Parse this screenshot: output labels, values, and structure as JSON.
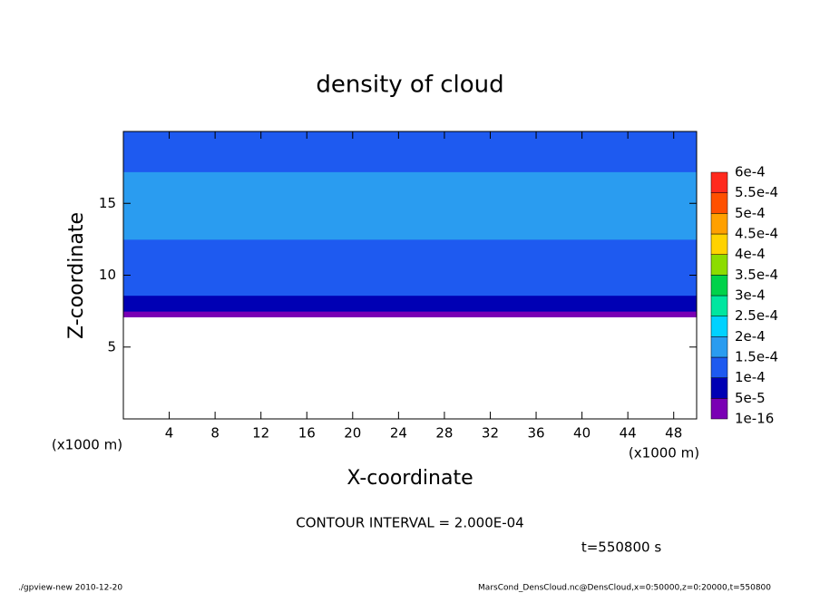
{
  "chart_data": {
    "type": "contour",
    "title": "density of cloud",
    "xlabel": "X-coordinate",
    "ylabel": "Z-coordinate",
    "x_unit_left": "(x1000 m)",
    "x_unit_right": "(x1000 m)",
    "xlim": [
      0,
      50
    ],
    "xticks": [
      4,
      8,
      12,
      16,
      20,
      24,
      28,
      32,
      36,
      40,
      44,
      48
    ],
    "ylim": [
      0,
      20
    ],
    "yticks": [
      5,
      10,
      15
    ],
    "levels": [
      {
        "value": 1e-16,
        "label": "1e-16"
      },
      {
        "value": 5e-05,
        "label": "5e-5"
      },
      {
        "value": 0.0001,
        "label": "1e-4"
      },
      {
        "value": 0.00015,
        "label": "1.5e-4"
      },
      {
        "value": 0.0002,
        "label": "2e-4"
      },
      {
        "value": 0.00025,
        "label": "2.5e-4"
      },
      {
        "value": 0.0003,
        "label": "3e-4"
      },
      {
        "value": 0.00035,
        "label": "3.5e-4"
      },
      {
        "value": 0.0004,
        "label": "4e-4"
      },
      {
        "value": 0.00045,
        "label": "4.5e-4"
      },
      {
        "value": 0.0005,
        "label": "5e-4"
      },
      {
        "value": 0.00055,
        "label": "5.5e-4"
      },
      {
        "value": 0.0006,
        "label": "6e-4"
      }
    ],
    "colors": [
      "#7a00b4",
      "#0000b4",
      "#1e5af0",
      "#2a9cf0",
      "#00d2ff",
      "#00e6a0",
      "#00d24a",
      "#8cdc00",
      "#ffd200",
      "#ffa000",
      "#ff5000",
      "#ff2a1e",
      "#ff8c8c"
    ],
    "profile": {
      "z": [
        7.1,
        7.5,
        8.0,
        8.6,
        9.3,
        10.5,
        12.5,
        17.2
      ],
      "values": [
        2e-05,
        6e-05,
        8e-05,
        0.00011,
        0.00013,
        0.00014,
        0.00017,
        0.00014
      ]
    },
    "annotation": "CONTOUR INTERVAL = 2.000E-04",
    "time_label": "t=550800 s",
    "footer_left": "./gpview-new  2010-12-20",
    "footer_right": "MarsCond_DensCloud.nc@DensCloud,x=0:50000,z=0:20000,t=550800"
  }
}
